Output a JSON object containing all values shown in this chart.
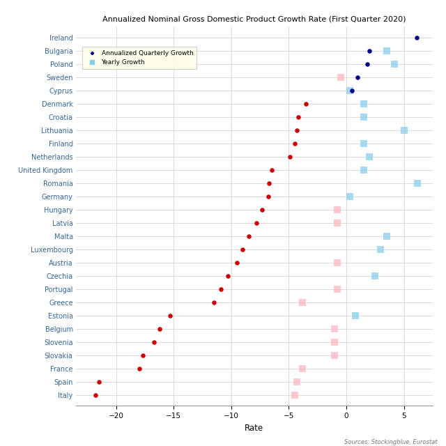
{
  "title": "Annualized Nominal Gross Domestic Product Growth Rate (First Quarter 2020)",
  "xlabel": "Rate",
  "source": "Sources: Stockingblue, Eurostat",
  "countries": [
    "Ireland",
    "Bulgaria",
    "Poland",
    "Sweden",
    "Cyprus",
    "Denmark",
    "Croatia",
    "Lithuania",
    "Finland",
    "Netherlands",
    "United Kingdom",
    "Romania",
    "Germany",
    "Hungary",
    "Latvia",
    "Malta",
    "Luxembourg",
    "Austria",
    "Czechia",
    "Portugal",
    "Greece",
    "Estonia",
    "Belgium",
    "Slovenia",
    "Slovakia",
    "France",
    "Spain",
    "Italy"
  ],
  "annualized_quarterly": [
    6.1,
    2.0,
    1.8,
    1.0,
    0.5,
    -3.5,
    -4.2,
    -4.3,
    -4.5,
    -4.9,
    -6.5,
    -6.7,
    -6.8,
    -7.3,
    -7.8,
    -8.5,
    -9.0,
    -9.5,
    -10.3,
    -10.9,
    -11.5,
    -15.3,
    -16.2,
    -16.7,
    -17.7,
    -18.0,
    -21.5,
    -21.8
  ],
  "yearly_growth": [
    null,
    3.5,
    4.2,
    -0.5,
    0.3,
    1.5,
    1.5,
    5.0,
    1.5,
    2.0,
    1.5,
    6.2,
    0.3,
    -0.8,
    -0.8,
    3.5,
    3.0,
    -0.8,
    2.5,
    -0.8,
    -3.8,
    0.8,
    -1.0,
    -1.0,
    -1.0,
    -3.8,
    -4.3,
    -4.5
  ],
  "dot_color_positive": "#00008B",
  "dot_color_negative": "#CC0000",
  "square_color_positive": "#87CEEB",
  "square_color_negative": "#FFB6C1",
  "xlim": [
    -23.5,
    7.5
  ],
  "xticks": [
    -20,
    -15,
    -10,
    -5,
    0,
    5
  ],
  "grid_color": "#cccccc",
  "bg_color": "#ffffff",
  "label_color": "#336699"
}
